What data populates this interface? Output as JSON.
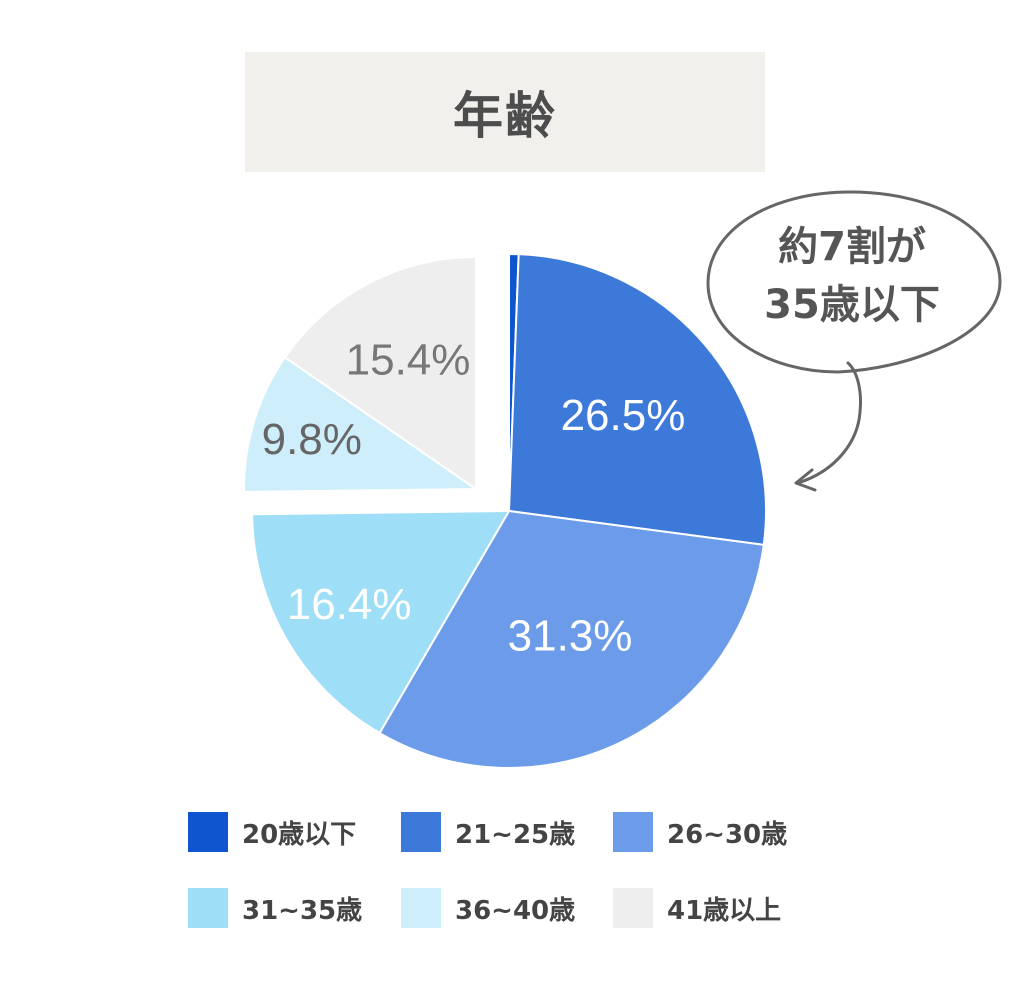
{
  "title": "年齢",
  "callout": {
    "line1": "約7割が",
    "line2": "35歳以下"
  },
  "chart_data": {
    "type": "pie",
    "title": "年齢",
    "categories": [
      "20歳以下",
      "21~25歳",
      "26~30歳",
      "31~35歳",
      "36~40歳",
      "41歳以上"
    ],
    "values": [
      0.6,
      26.5,
      31.3,
      16.4,
      9.8,
      15.4
    ],
    "labels": [
      "",
      "26.5%",
      "31.3%",
      "16.4%",
      "9.8%",
      "15.4%"
    ],
    "colors": [
      "#0f55d0",
      "#3c79d9",
      "#6c9ce9",
      "#9edff7",
      "#cdeefa",
      "#eeeeee"
    ],
    "label_colors": [
      "#ffffff",
      "#ffffff",
      "#ffffff",
      "#ffffff",
      "#666666",
      "#777777"
    ],
    "exploded": [
      false,
      false,
      false,
      false,
      true,
      true
    ],
    "legend_position": "bottom"
  }
}
